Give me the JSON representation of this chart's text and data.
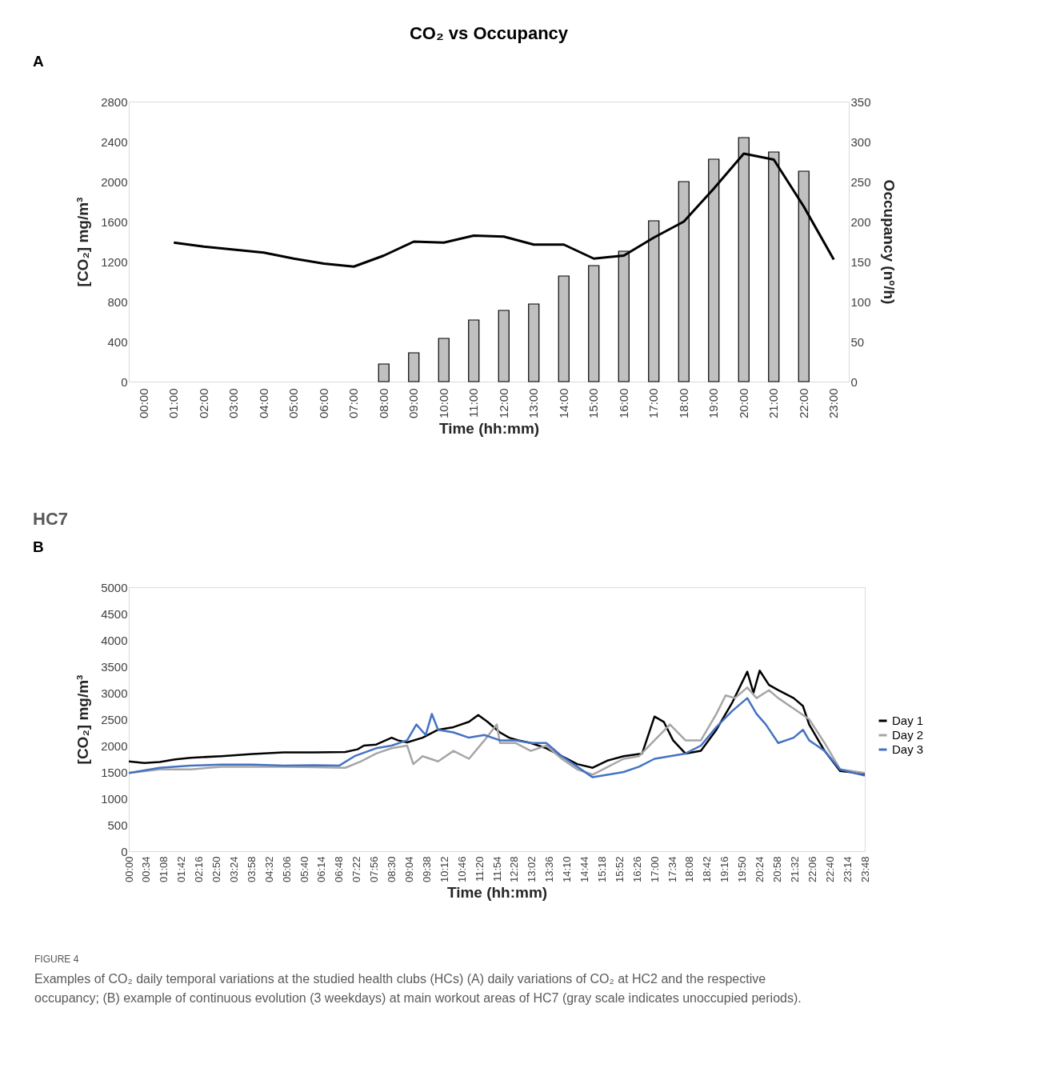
{
  "chart_data": [
    {
      "type": "bar",
      "title": "CO₂ vs Occupancy",
      "xlabel": "Time (hh:mm)",
      "ylabel": "[CO₂] mg/m³",
      "y2label": "Occupancy (nº/h)",
      "categories": [
        "00:00",
        "01:00",
        "02:00",
        "03:00",
        "04:00",
        "05:00",
        "06:00",
        "07:00",
        "08:00",
        "09:00",
        "10:00",
        "11:00",
        "12:00",
        "13:00",
        "14:00",
        "15:00",
        "16:00",
        "17:00",
        "18:00",
        "19:00",
        "20:00",
        "21:00",
        "22:00",
        "23:00"
      ],
      "series": [
        {
          "type": "bar",
          "axis": "y2",
          "color": "#c0c0c0",
          "values": [
            null,
            null,
            null,
            null,
            null,
            null,
            null,
            null,
            22,
            36,
            54,
            77,
            89,
            97,
            132,
            145,
            163,
            201,
            250,
            278,
            305,
            287,
            263,
            null
          ]
        },
        {
          "type": "line",
          "color": "#000000",
          "values": [
            null,
            1390,
            1350,
            1320,
            1290,
            1230,
            1180,
            1150,
            1260,
            1400,
            1390,
            1460,
            1450,
            1370,
            1370,
            1230,
            1260,
            1440,
            1600,
            1930,
            2280,
            2220,
            1750,
            1220
          ]
        }
      ],
      "ylim": [
        0,
        2800
      ],
      "yticks": [
        0,
        400,
        800,
        1200,
        1600,
        2000,
        2400,
        2800
      ],
      "y2lim": [
        0,
        350
      ],
      "y2ticks": [
        0,
        50,
        100,
        150,
        200,
        250,
        300,
        350
      ],
      "annotations": [
        "A"
      ]
    },
    {
      "type": "line",
      "title": "HC7",
      "xlabel": "Time (hh:mm)",
      "ylabel": "[CO₂] mg/m³",
      "legend": "right",
      "xlim": [
        0,
        23.8
      ],
      "xticks": [
        {
          "value": 0,
          "label": "00:00"
        },
        {
          "value": 0.5667,
          "label": "00:34"
        },
        {
          "value": 1.1333,
          "label": "01:08"
        },
        {
          "value": 1.7,
          "label": "01:42"
        },
        {
          "value": 2.2667,
          "label": "02:16"
        },
        {
          "value": 2.8333,
          "label": "02:50"
        },
        {
          "value": 3.4,
          "label": "03:24"
        },
        {
          "value": 3.9667,
          "label": "03:58"
        },
        {
          "value": 4.5333,
          "label": "04:32"
        },
        {
          "value": 5.1,
          "label": "05:06"
        },
        {
          "value": 5.6667,
          "label": "05:40"
        },
        {
          "value": 6.2333,
          "label": "06:14"
        },
        {
          "value": 6.8,
          "label": "06:48"
        },
        {
          "value": 7.3667,
          "label": "07:22"
        },
        {
          "value": 7.9333,
          "label": "07:56"
        },
        {
          "value": 8.5,
          "label": "08:30"
        },
        {
          "value": 9.0667,
          "label": "09:04"
        },
        {
          "value": 9.6333,
          "label": "09:38"
        },
        {
          "value": 10.2,
          "label": "10:12"
        },
        {
          "value": 10.7667,
          "label": "10:46"
        },
        {
          "value": 11.3333,
          "label": "11:20"
        },
        {
          "value": 11.9,
          "label": "11:54"
        },
        {
          "value": 12.4667,
          "label": "12:28"
        },
        {
          "value": 13.0333,
          "label": "13:02"
        },
        {
          "value": 13.6,
          "label": "13:36"
        },
        {
          "value": 14.1667,
          "label": "14:10"
        },
        {
          "value": 14.7333,
          "label": "14:44"
        },
        {
          "value": 15.3,
          "label": "15:18"
        },
        {
          "value": 15.8667,
          "label": "15:52"
        },
        {
          "value": 16.4333,
          "label": "16:26"
        },
        {
          "value": 17.0,
          "label": "17:00"
        },
        {
          "value": 17.5667,
          "label": "17:34"
        },
        {
          "value": 18.1333,
          "label": "18:08"
        },
        {
          "value": 18.7,
          "label": "18:42"
        },
        {
          "value": 19.2667,
          "label": "19:16"
        },
        {
          "value": 19.8333,
          "label": "19:50"
        },
        {
          "value": 20.4,
          "label": "20:24"
        },
        {
          "value": 20.9667,
          "label": "20:58"
        },
        {
          "value": 21.5333,
          "label": "21:32"
        },
        {
          "value": 22.1,
          "label": "22:06"
        },
        {
          "value": 22.6667,
          "label": "22:40"
        },
        {
          "value": 23.2333,
          "label": "23:14"
        },
        {
          "value": 23.8,
          "label": "23:48"
        }
      ],
      "ylim": [
        0,
        5000
      ],
      "yticks": [
        0,
        500,
        1000,
        1500,
        2000,
        2500,
        3000,
        3500,
        4000,
        4500,
        5000
      ],
      "series": [
        {
          "name": "Day 1",
          "color": "#000000",
          "x": [
            0,
            0.5,
            1,
            1.5,
            2,
            3,
            4,
            5,
            6,
            7,
            7.4,
            7.6,
            8,
            8.5,
            8.7,
            9,
            9.5,
            10,
            10.5,
            11,
            11.3,
            11.6,
            12,
            12.3,
            12.6,
            13,
            13.5,
            14,
            14.5,
            15,
            15.5,
            16,
            16.6,
            17,
            17.3,
            17.6,
            18,
            18.5,
            19,
            19.5,
            20,
            20.2,
            20.4,
            20.7,
            21,
            21.5,
            21.8,
            22,
            22.5,
            23,
            23.3,
            23.8
          ],
          "values": [
            1700,
            1670,
            1690,
            1740,
            1770,
            1800,
            1840,
            1870,
            1870,
            1880,
            1930,
            2000,
            2020,
            2150,
            2100,
            2060,
            2150,
            2300,
            2350,
            2450,
            2580,
            2450,
            2250,
            2150,
            2100,
            2050,
            1950,
            1800,
            1650,
            1580,
            1720,
            1800,
            1850,
            2550,
            2450,
            2100,
            1850,
            1900,
            2300,
            2800,
            3400,
            3000,
            3420,
            3150,
            3050,
            2900,
            2750,
            2400,
            1900,
            1520,
            1500,
            1450
          ]
        },
        {
          "name": "Day 2",
          "color": "#a6a6a6",
          "x": [
            0,
            1,
            2,
            3,
            4,
            5,
            6,
            7,
            7.5,
            8,
            8.5,
            9,
            9.2,
            9.5,
            10,
            10.5,
            11,
            11.5,
            11.9,
            12,
            12.5,
            13,
            13.5,
            14,
            14.5,
            15,
            15.5,
            16,
            16.5,
            17,
            17.5,
            18,
            18.5,
            19,
            19.3,
            19.6,
            20,
            20.3,
            20.7,
            21,
            21.5,
            22,
            22.5,
            23,
            23.8
          ],
          "values": [
            1480,
            1550,
            1550,
            1600,
            1600,
            1600,
            1590,
            1580,
            1700,
            1850,
            1950,
            2000,
            1650,
            1800,
            1700,
            1900,
            1750,
            2100,
            2400,
            2050,
            2050,
            1900,
            2000,
            1750,
            1550,
            1450,
            1600,
            1750,
            1800,
            2100,
            2400,
            2100,
            2100,
            2600,
            2950,
            2900,
            3100,
            2900,
            3050,
            2900,
            2700,
            2500,
            2050,
            1550,
            1480
          ]
        },
        {
          "name": "Day 3",
          "color": "#4472c4",
          "x": [
            0,
            1,
            2,
            3,
            4,
            5,
            6,
            6.8,
            7.3,
            8,
            8.5,
            9,
            9.3,
            9.6,
            9.8,
            10,
            10.5,
            11,
            11.5,
            12,
            12.5,
            13,
            13.5,
            14,
            14.5,
            15,
            15.5,
            16,
            16.5,
            17,
            17.5,
            18,
            18.5,
            19,
            19.5,
            20,
            20.3,
            20.6,
            21,
            21.5,
            21.8,
            22,
            22.5,
            23,
            23.8
          ],
          "values": [
            1480,
            1580,
            1620,
            1640,
            1640,
            1620,
            1630,
            1620,
            1800,
            1950,
            2000,
            2100,
            2400,
            2200,
            2600,
            2300,
            2250,
            2150,
            2200,
            2100,
            2100,
            2050,
            2050,
            1800,
            1600,
            1400,
            1450,
            1500,
            1600,
            1750,
            1800,
            1850,
            2000,
            2350,
            2650,
            2900,
            2600,
            2400,
            2050,
            2150,
            2300,
            2100,
            1900,
            1550,
            1430
          ]
        }
      ],
      "annotations": [
        "B",
        "FIGURE 4",
        "Examples of CO₂ daily temporal variations at the studied health clubs (HCs) (A) daily variations of CO₂ at HC2 and the respective occupancy; (B) example of continuous evolution (3 weekdays) at main workout areas of HC7 (gray scale indicates unoccupied periods)."
      ]
    }
  ]
}
